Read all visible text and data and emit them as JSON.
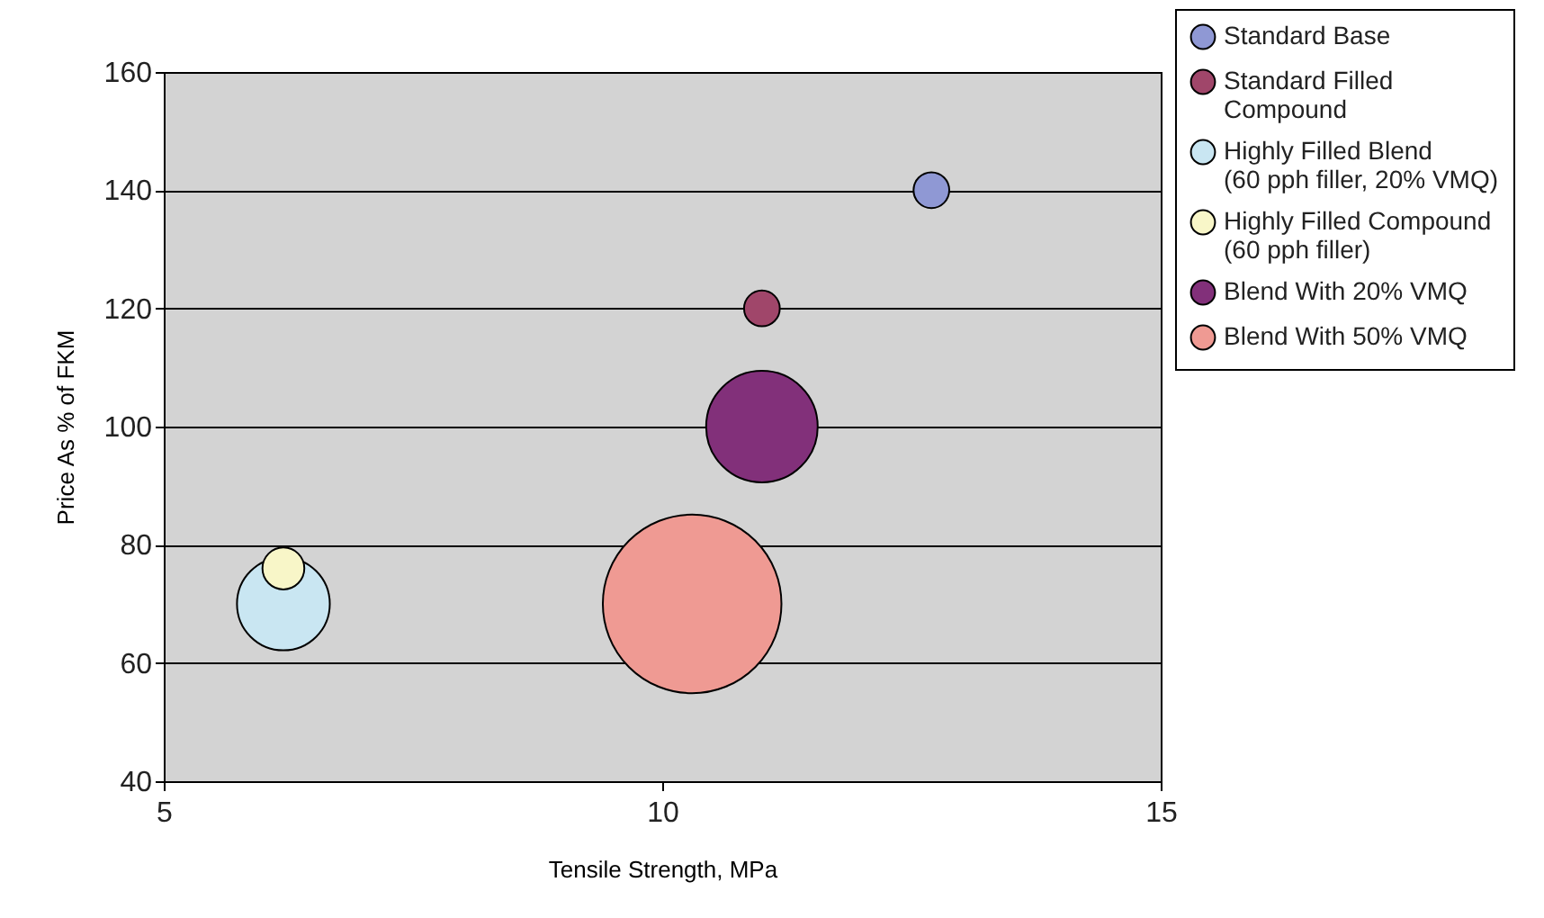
{
  "chart_data": {
    "type": "bubble",
    "xlabel": "Tensile Strength, MPa",
    "ylabel": "Price As % of FKM",
    "xlim": [
      5,
      15
    ],
    "xticks": [
      5,
      10,
      15
    ],
    "ylim": [
      40,
      160
    ],
    "yticks": [
      40,
      60,
      80,
      100,
      120,
      140,
      160
    ],
    "grid": "y",
    "legend": "top right",
    "series": [
      {
        "name": "Standard Base",
        "color": "#8f98d4",
        "x": [
          12.7
        ],
        "values": [
          140
        ],
        "sizes": [
          0.04
        ]
      },
      {
        "name": "Standard Filled Compound",
        "color": "#a0466a",
        "x": [
          11.0
        ],
        "values": [
          120
        ],
        "sizes": [
          0.04
        ]
      },
      {
        "name": "Highly Filled Blend (60 pph filler, 20% VMQ)",
        "color": "#c9e6f2",
        "x": [
          6.2
        ],
        "values": [
          70
        ],
        "sizes": [
          0.27
        ]
      },
      {
        "name": "Highly Filled Compound (60 pph filler)",
        "color": "#f8f6c8",
        "x": [
          6.2
        ],
        "values": [
          76
        ],
        "sizes": [
          0.055
        ]
      },
      {
        "name": "Blend With 20% VMQ",
        "color": "#82307a",
        "x": [
          11.0
        ],
        "values": [
          100
        ],
        "sizes": [
          0.39
        ]
      },
      {
        "name": "Blend With 50% VMQ",
        "color": "#ef9a93",
        "x": [
          10.3
        ],
        "values": [
          70
        ],
        "sizes": [
          1
        ]
      }
    ]
  }
}
